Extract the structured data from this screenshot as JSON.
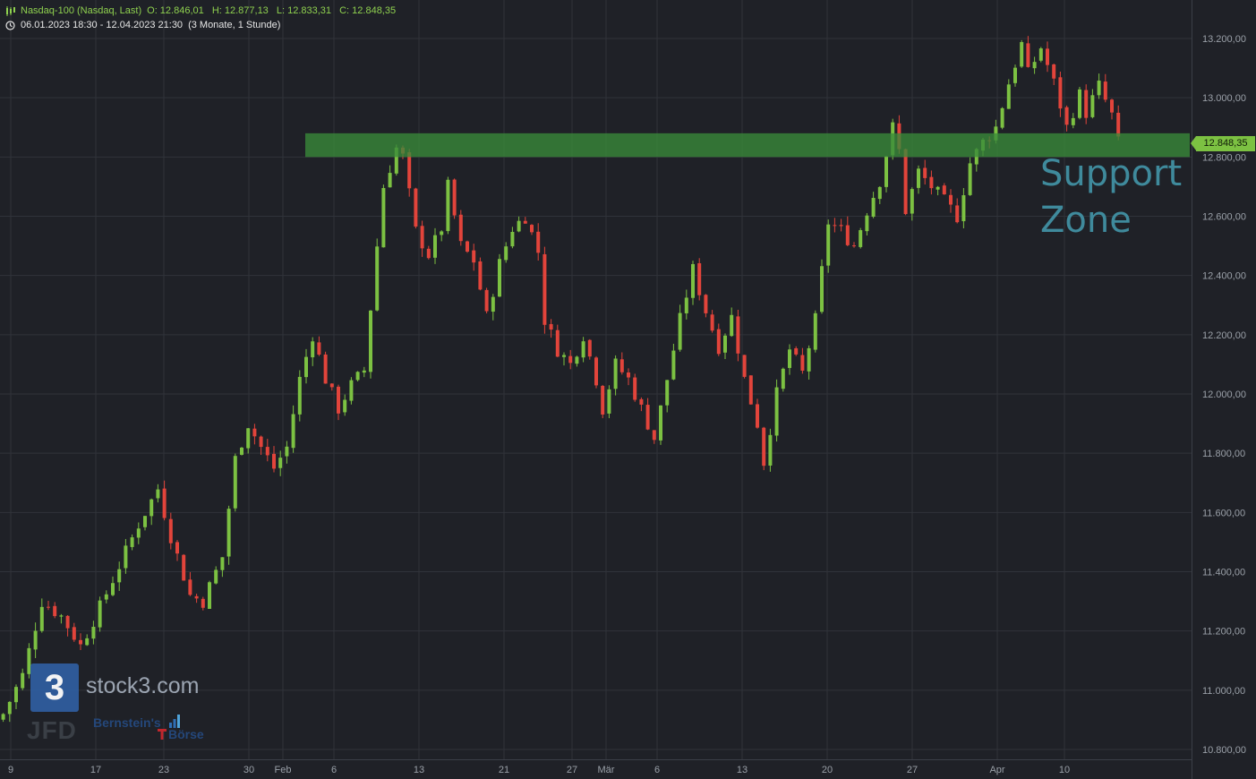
{
  "header": {
    "instrument": "Nasdaq-100 (Nasdaq, Last)",
    "open": "O: 12.846,01",
    "high": "H: 12.877,13",
    "low": "L: 12.833,31",
    "close": "C: 12.848,35",
    "range": "06.01.2023 18:30 - 12.04.2023 21:30",
    "period": "(3 Monate, 1 Stunde)"
  },
  "annotation": {
    "label": "Support\nZone"
  },
  "last_price_label": "12.848,35",
  "watermark": {
    "logo_glyph": "3",
    "brand": "stock3.com",
    "jfd": "JFD",
    "bb_line1": "Bernstein's",
    "bb_line2": "Börse"
  },
  "colors": {
    "background": "#1f2127",
    "grid": "#30333a",
    "up": "#7cc142",
    "down": "#e2443b",
    "support_zone": "#3a8a3a",
    "support_text": "#3f8a9c",
    "axis_text": "#9aa0a8"
  },
  "chart_data": {
    "type": "candlestick",
    "title": "Nasdaq-100 (Nasdaq, Last)",
    "x_axis": {
      "tick_labels": [
        "9",
        "17",
        "23",
        "30",
        "Feb",
        "6",
        "13",
        "21",
        "27",
        "Mär",
        "6",
        "13",
        "20",
        "27",
        "Apr",
        "10"
      ]
    },
    "y_axis": {
      "range": [
        10750,
        13250
      ],
      "tick_values": [
        10800,
        11000,
        11200,
        11400,
        11600,
        11800,
        12000,
        12200,
        12400,
        12600,
        12800,
        13000,
        13200
      ],
      "tick_labels": [
        "10.800,00",
        "11.000,00",
        "11.200,00",
        "11.400,00",
        "11.600,00",
        "11.800,00",
        "12.000,00",
        "12.200,00",
        "12.400,00",
        "12.600,00",
        "12.800,00",
        "13.000,00",
        "13.200,00"
      ],
      "position": "right"
    },
    "grid": true,
    "support_zone": {
      "low": 12800,
      "high": 12880
    },
    "last_price": 12848.35,
    "path": [
      [
        0,
        10920
      ],
      [
        3,
        11050
      ],
      [
        6,
        11300
      ],
      [
        9,
        11250
      ],
      [
        12,
        11150
      ],
      [
        15,
        11280
      ],
      [
        18,
        11420
      ],
      [
        21,
        11560
      ],
      [
        24,
        11680
      ],
      [
        26,
        11520
      ],
      [
        29,
        11320
      ],
      [
        31,
        11300
      ],
      [
        34,
        11450
      ],
      [
        36,
        11780
      ],
      [
        38,
        11900
      ],
      [
        40,
        11820
      ],
      [
        42,
        11750
      ],
      [
        44,
        11820
      ],
      [
        46,
        12050
      ],
      [
        48,
        12200
      ],
      [
        50,
        12050
      ],
      [
        52,
        11950
      ],
      [
        54,
        12030
      ],
      [
        56,
        12080
      ],
      [
        58,
        12500
      ],
      [
        59,
        12700
      ],
      [
        61,
        12830
      ],
      [
        62,
        12800
      ],
      [
        64,
        12550
      ],
      [
        66,
        12470
      ],
      [
        68,
        12560
      ],
      [
        69,
        12700
      ],
      [
        71,
        12500
      ],
      [
        73,
        12450
      ],
      [
        75,
        12260
      ],
      [
        77,
        12440
      ],
      [
        79,
        12560
      ],
      [
        81,
        12600
      ],
      [
        83,
        12480
      ],
      [
        84,
        12250
      ],
      [
        86,
        12150
      ],
      [
        88,
        12100
      ],
      [
        90,
        12200
      ],
      [
        92,
        12050
      ],
      [
        93,
        11950
      ],
      [
        95,
        12100
      ],
      [
        97,
        12050
      ],
      [
        99,
        11950
      ],
      [
        101,
        11850
      ],
      [
        103,
        12050
      ],
      [
        105,
        12250
      ],
      [
        107,
        12420
      ],
      [
        109,
        12280
      ],
      [
        111,
        12160
      ],
      [
        113,
        12260
      ],
      [
        115,
        12050
      ],
      [
        117,
        11900
      ],
      [
        118,
        11770
      ],
      [
        120,
        12000
      ],
      [
        122,
        12150
      ],
      [
        124,
        12070
      ],
      [
        126,
        12250
      ],
      [
        128,
        12580
      ],
      [
        130,
        12550
      ],
      [
        132,
        12500
      ],
      [
        134,
        12620
      ],
      [
        136,
        12720
      ],
      [
        138,
        12900
      ],
      [
        139,
        12820
      ],
      [
        140,
        12620
      ],
      [
        142,
        12750
      ],
      [
        144,
        12700
      ],
      [
        146,
        12650
      ],
      [
        148,
        12600
      ],
      [
        150,
        12780
      ],
      [
        152,
        12850
      ],
      [
        154,
        12900
      ],
      [
        156,
        13050
      ],
      [
        158,
        13180
      ],
      [
        159,
        13080
      ],
      [
        161,
        13170
      ],
      [
        163,
        13050
      ],
      [
        165,
        12900
      ],
      [
        167,
        13010
      ],
      [
        168,
        12950
      ],
      [
        170,
        13040
      ],
      [
        172,
        12940
      ],
      [
        173,
        12848
      ]
    ]
  }
}
